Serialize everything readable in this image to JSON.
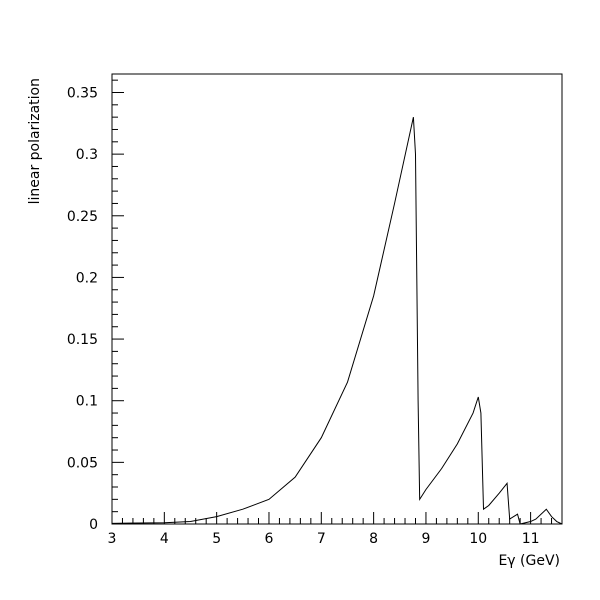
{
  "chart_data": {
    "type": "line",
    "title": "",
    "xlabel": "Eγ (GeV)",
    "ylabel": "linear polarization",
    "xlim": [
      3,
      11.6
    ],
    "ylim": [
      0,
      0.365
    ],
    "grid": false,
    "x_ticks": [
      3,
      4,
      5,
      6,
      7,
      8,
      9,
      10,
      11
    ],
    "x_tick_labels": [
      "3",
      "4",
      "5",
      "6",
      "7",
      "8",
      "9",
      "10",
      "11"
    ],
    "y_ticks": [
      0,
      0.05,
      0.1,
      0.15,
      0.2,
      0.25,
      0.3,
      0.35
    ],
    "y_tick_labels": [
      "0",
      "0.05",
      "0.1",
      "0.15",
      "0.2",
      "0.25",
      "0.3",
      "0.35"
    ],
    "series": [
      {
        "color": "#000000",
        "points": [
          [
            3.0,
            0.0005
          ],
          [
            3.5,
            0.0008
          ],
          [
            4.0,
            0.001
          ],
          [
            4.5,
            0.002
          ],
          [
            5.0,
            0.006
          ],
          [
            5.5,
            0.012
          ],
          [
            6.0,
            0.02
          ],
          [
            6.5,
            0.038
          ],
          [
            7.0,
            0.07
          ],
          [
            7.5,
            0.115
          ],
          [
            8.0,
            0.185
          ],
          [
            8.4,
            0.26
          ],
          [
            8.76,
            0.33
          ],
          [
            8.8,
            0.3
          ],
          [
            8.85,
            0.1
          ],
          [
            8.88,
            0.02
          ],
          [
            9.0,
            0.028
          ],
          [
            9.3,
            0.045
          ],
          [
            9.6,
            0.065
          ],
          [
            9.9,
            0.09
          ],
          [
            10.0,
            0.103
          ],
          [
            10.05,
            0.09
          ],
          [
            10.1,
            0.012
          ],
          [
            10.2,
            0.015
          ],
          [
            10.4,
            0.025
          ],
          [
            10.55,
            0.033
          ],
          [
            10.6,
            0.004
          ],
          [
            10.75,
            0.008
          ],
          [
            10.8,
            0.0
          ],
          [
            11.0,
            0.002
          ],
          [
            11.1,
            0.004
          ],
          [
            11.3,
            0.012
          ],
          [
            11.4,
            0.006
          ],
          [
            11.5,
            0.002
          ],
          [
            11.6,
            0.0
          ]
        ]
      }
    ]
  }
}
